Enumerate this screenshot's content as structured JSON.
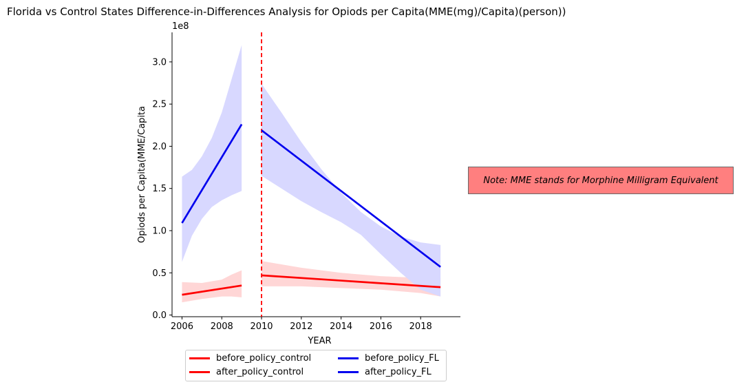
{
  "chart_data": {
    "type": "line",
    "title": "Florida vs Control States Difference-in-Differences Analysis for Opiods per Capita(MME(mg)/Capita)(person))",
    "xlabel": "YEAR",
    "ylabel": "Opiods per Capita(MME/Capita",
    "y_offset_label": "1e8",
    "xlim": [
      2005.5,
      2020.0
    ],
    "ylim": [
      -0.02,
      3.35
    ],
    "x_ticks": [
      2006,
      2008,
      2010,
      2012,
      2014,
      2016,
      2018
    ],
    "y_ticks": [
      0.0,
      0.5,
      1.0,
      1.5,
      2.0,
      2.5,
      3.0
    ],
    "y_tick_labels": [
      "0.0",
      "0.5",
      "1.0",
      "1.5",
      "2.0",
      "2.5",
      "3.0"
    ],
    "policy_line_x": 2010,
    "series": [
      {
        "name": "before_policy_control",
        "color": "#ff0000",
        "band_color": "#ffd6d6",
        "line": [
          [
            2006,
            0.24
          ],
          [
            2009,
            0.35
          ]
        ],
        "band": {
          "x": [
            2006,
            2007,
            2008,
            2008.5,
            2009
          ],
          "upper": [
            0.39,
            0.38,
            0.42,
            0.48,
            0.53
          ],
          "lower": [
            0.15,
            0.19,
            0.22,
            0.22,
            0.21
          ]
        }
      },
      {
        "name": "after_policy_control",
        "color": "#ff0000",
        "band_color": "#ffd6d6",
        "line": [
          [
            2010,
            0.47
          ],
          [
            2019,
            0.33
          ]
        ],
        "band": {
          "x": [
            2010,
            2012,
            2014,
            2016,
            2018,
            2019
          ],
          "upper": [
            0.64,
            0.56,
            0.5,
            0.46,
            0.44,
            0.44
          ],
          "lower": [
            0.34,
            0.34,
            0.32,
            0.3,
            0.26,
            0.22
          ]
        }
      },
      {
        "name": "before_policy_FL",
        "color": "#0000ee",
        "band_color": "#d8d8ff",
        "line": [
          [
            2006,
            1.09
          ],
          [
            2009,
            2.26
          ]
        ],
        "band": {
          "x": [
            2006,
            2006.5,
            2007,
            2007.5,
            2008,
            2008.5,
            2009
          ],
          "upper": [
            1.64,
            1.72,
            1.88,
            2.1,
            2.4,
            2.8,
            3.2
          ],
          "lower": [
            0.63,
            0.94,
            1.14,
            1.28,
            1.36,
            1.42,
            1.47
          ]
        }
      },
      {
        "name": "after_policy_FL",
        "color": "#0000ee",
        "band_color": "#d8d8ff",
        "line": [
          [
            2010,
            2.19
          ],
          [
            2019,
            0.57
          ]
        ],
        "band": {
          "x": [
            2010,
            2011,
            2012,
            2013,
            2014,
            2015,
            2016,
            2017,
            2018,
            2019
          ],
          "upper": [
            2.74,
            2.4,
            2.05,
            1.73,
            1.45,
            1.22,
            1.05,
            0.93,
            0.86,
            0.83
          ],
          "lower": [
            1.65,
            1.5,
            1.35,
            1.22,
            1.1,
            0.95,
            0.72,
            0.5,
            0.3,
            0.22
          ]
        }
      }
    ],
    "annotation": "Note: MME stands for Morphine Milligram Equivalent",
    "legend_placement": "bottom-center"
  }
}
